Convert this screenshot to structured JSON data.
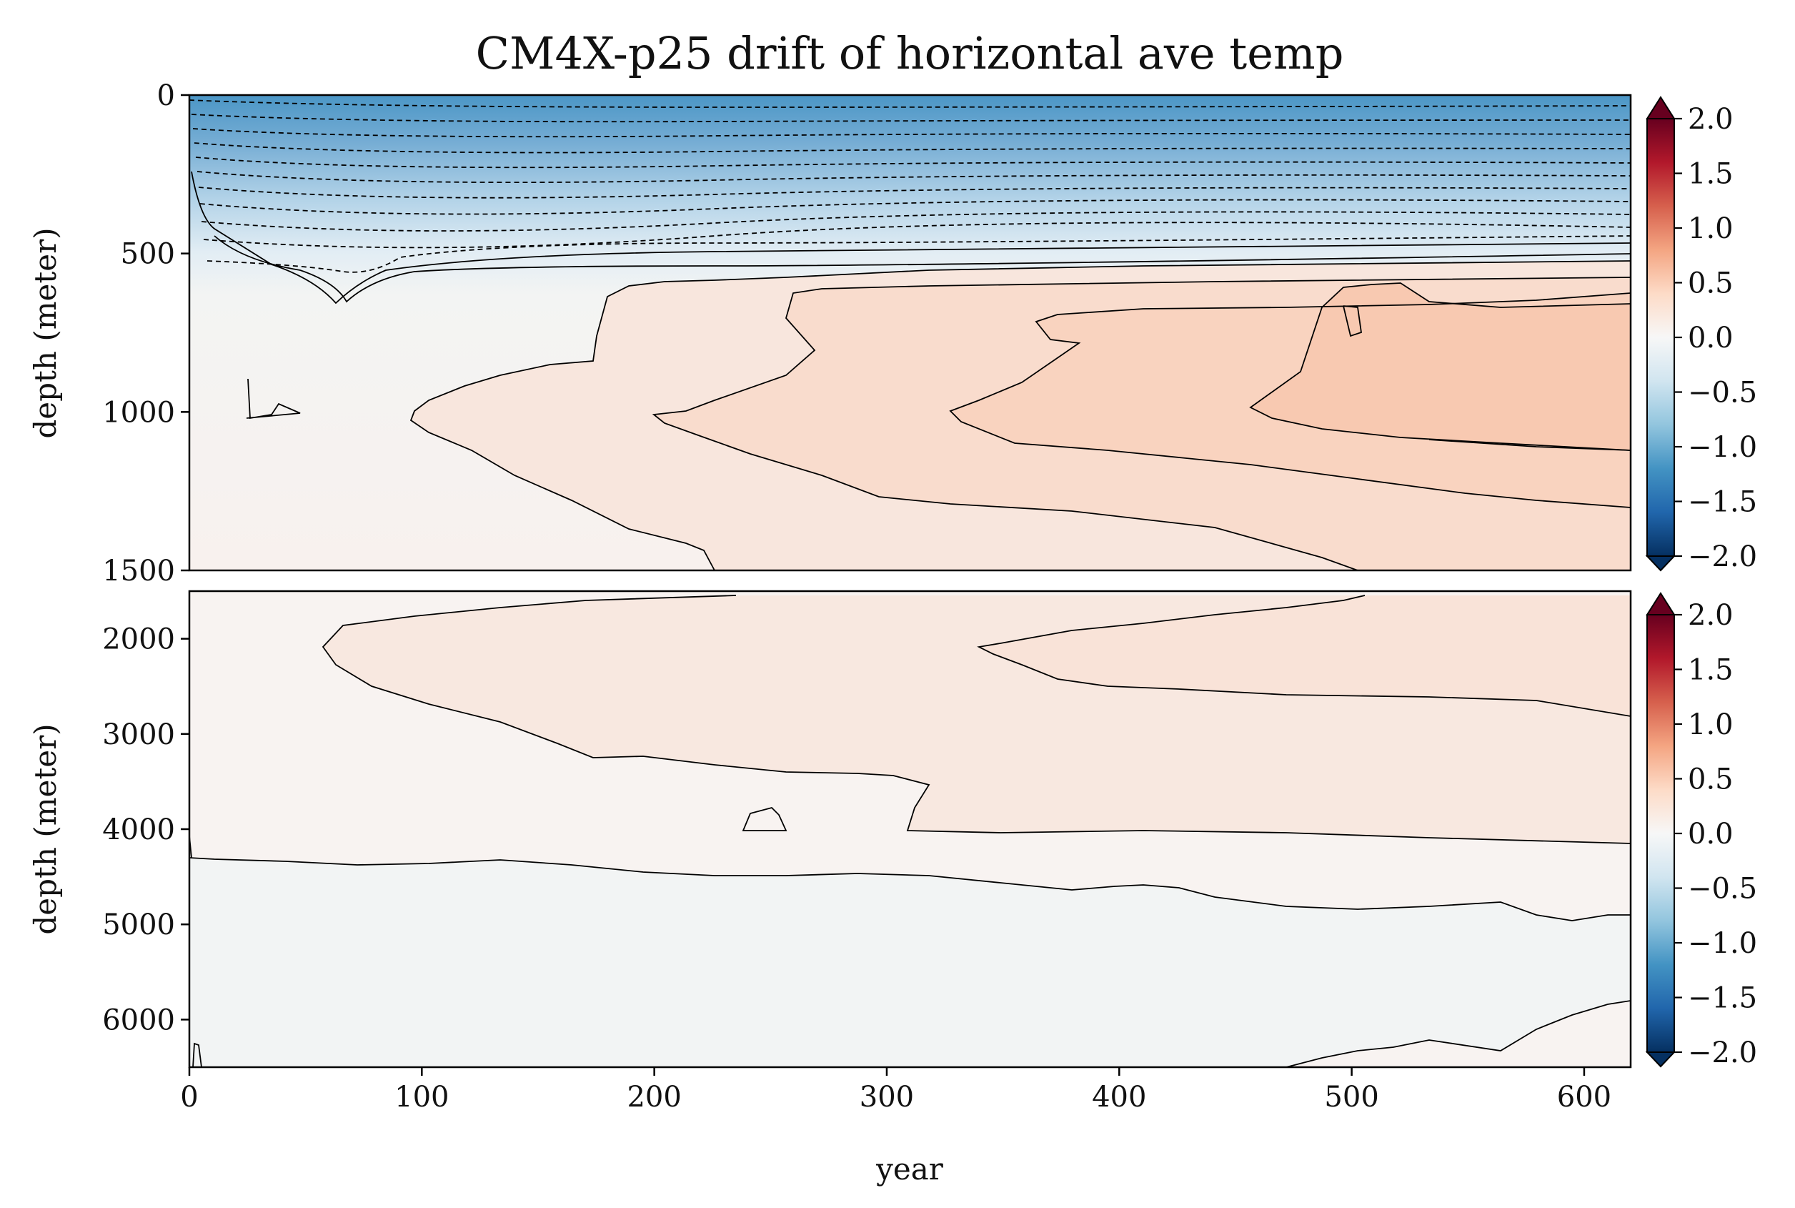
{
  "chart_data": [
    {
      "type": "heatmap",
      "panel": "upper",
      "title": "CM4X-p25 drift of horizontal ave temp",
      "xlabel": "",
      "ylabel": "depth (meter)",
      "xlim": [
        0,
        620
      ],
      "ylim": [
        1500,
        0
      ],
      "y_ticks": [
        0,
        500,
        1000,
        1500
      ],
      "grid": false,
      "contour_lines": "solid for positive and zero levels, dashed for negative levels",
      "regions": [
        {
          "value": -0.9,
          "from_depth": 0,
          "to_depth": 150
        },
        {
          "value": -0.5,
          "from_depth": 150,
          "to_depth": 300
        },
        {
          "value": -0.2,
          "from_depth": 300,
          "to_depth": 450
        },
        {
          "value": 0.05,
          "from_depth": 450,
          "to_depth": 1500
        },
        {
          "value": 0.15,
          "note": "mid-depth warming tongue widening with time"
        },
        {
          "value": 0.3,
          "note": "strongest warming near 700-1100 m after year 450"
        }
      ]
    },
    {
      "type": "heatmap",
      "panel": "lower",
      "title": "",
      "xlabel": "year",
      "ylabel": "depth (meter)",
      "xlim": [
        0,
        620
      ],
      "ylim": [
        6500,
        1500
      ],
      "x_ticks": [
        0,
        100,
        200,
        300,
        400,
        500,
        600
      ],
      "y_ticks": [
        2000,
        3000,
        4000,
        5000,
        6000
      ],
      "grid": false,
      "regions": [
        {
          "value": 0.05,
          "from_depth": 1500,
          "to_depth": 4300
        },
        {
          "value": 0.12,
          "note": "warming layer 1700-2800 m after year 340"
        },
        {
          "value": -0.03,
          "from_depth": 4300,
          "to_depth": 6500
        }
      ]
    }
  ],
  "colorbars": [
    {
      "ticks": [
        "2.0",
        "1.5",
        "1.0",
        "0.5",
        "0.0",
        "−0.5",
        "−1.0",
        "−1.5",
        "−2.0"
      ],
      "vmin": -2.0,
      "vmax": 2.0,
      "extend": "both",
      "cmap": "RdBu_r"
    },
    {
      "ticks": [
        "2.0",
        "1.5",
        "1.0",
        "0.5",
        "0.0",
        "−0.5",
        "−1.0",
        "−1.5",
        "−2.0"
      ],
      "vmin": -2.0,
      "vmax": 2.0,
      "extend": "both",
      "cmap": "RdBu_r"
    }
  ],
  "colors": {
    "cmap_stops": [
      "#053061",
      "#2166ac",
      "#4393c3",
      "#92c5de",
      "#d1e5f0",
      "#f7f7f7",
      "#fddbc7",
      "#f4a582",
      "#d6604d",
      "#b2182b",
      "#67001f"
    ]
  }
}
